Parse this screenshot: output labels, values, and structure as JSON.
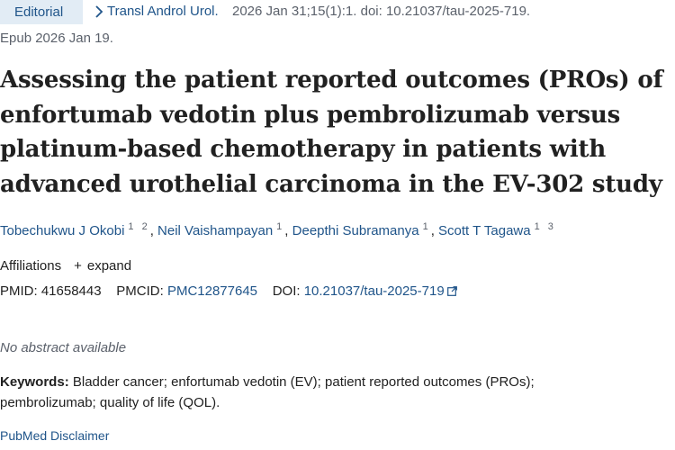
{
  "article": {
    "type_badge": "Editorial",
    "journal": "Transl Androl Urol.",
    "citation": "2026 Jan 31;15(1):1. doi: 10.21037/tau-2025-719.",
    "epub": "Epub 2026 Jan 19.",
    "title": "Assessing the patient reported outcomes (PROs) of enfortumab vedotin plus pembrolizumab versus platinum-based chemotherapy in patients with advanced urothelial carcinoma in the EV-302 study"
  },
  "authors": [
    {
      "name": "Tobechukwu J Okobi",
      "sup": "1 2"
    },
    {
      "name": "Neil Vaishampayan",
      "sup": "1"
    },
    {
      "name": "Deepthi Subramanya",
      "sup": "1"
    },
    {
      "name": "Scott T Tagawa",
      "sup": "1 3"
    }
  ],
  "affiliations": {
    "label": "Affiliations",
    "toggle": "expand"
  },
  "identifiers": {
    "pmid_label": "PMID:",
    "pmid": "41658443",
    "pmcid_label": "PMCID:",
    "pmcid": "PMC12877645",
    "doi_label": "DOI:",
    "doi": "10.21037/tau-2025-719"
  },
  "abstract_note": "No abstract available",
  "keywords": {
    "label": "Keywords:",
    "text": "Bladder cancer; enfortumab vedotin (EV); patient reported outcomes (PROs); pembrolizumab; quality of life (QOL)."
  },
  "disclaimer": "PubMed Disclaimer",
  "colors": {
    "link": "#20558a",
    "badge_bg": "#e2ecf5",
    "muted": "#5b616b",
    "text": "#212121"
  },
  "icons": [
    "chevron-right-icon",
    "plus-icon",
    "external-link-icon"
  ]
}
